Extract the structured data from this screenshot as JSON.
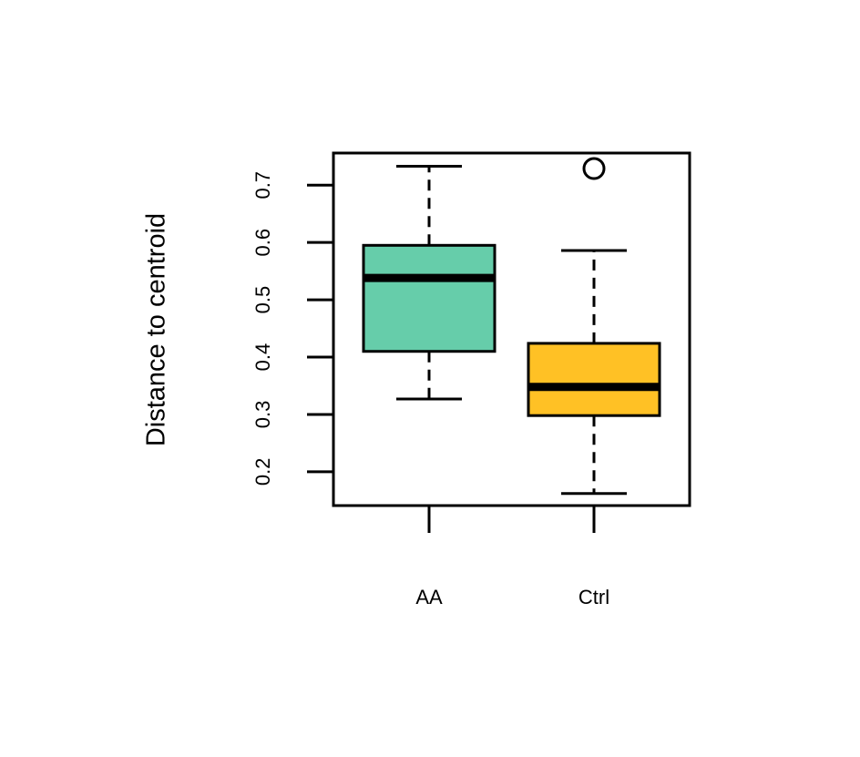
{
  "chart_data": {
    "type": "boxplot",
    "ylabel": "Distance to centroid",
    "categories": [
      "AA",
      "Ctrl"
    ],
    "colors": [
      "#66cdaa",
      "#ffc125"
    ],
    "whisker_low": [
      0.327,
      0.162
    ],
    "q1": [
      0.41,
      0.298
    ],
    "median": [
      0.538,
      0.348
    ],
    "q3": [
      0.595,
      0.424
    ],
    "whisker_high": [
      0.733,
      0.586
    ],
    "outliers": [
      [],
      [
        0.729
      ]
    ],
    "ylim": [
      0.141,
      0.756
    ],
    "yticks": [
      0.2,
      0.3,
      0.4,
      0.5,
      0.6,
      0.7
    ]
  }
}
